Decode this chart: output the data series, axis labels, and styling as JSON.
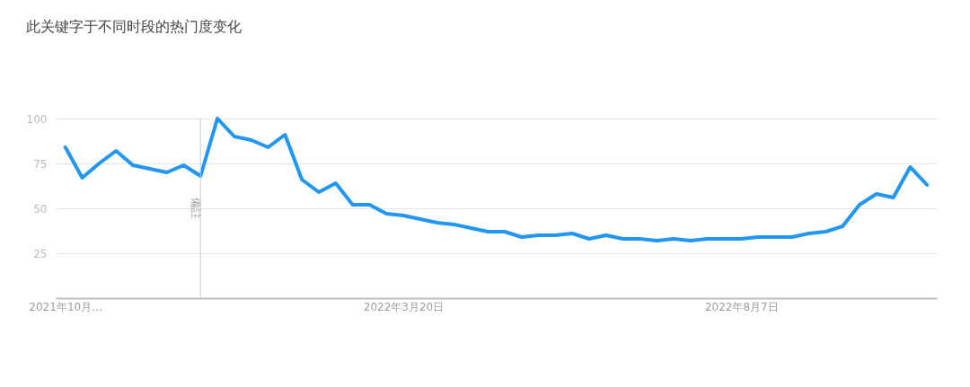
{
  "chart_data": {
    "type": "line",
    "title": "此关键字于不同时段的热门度变化",
    "x": [
      "2021-10-31",
      "2021-11-07",
      "2021-11-14",
      "2021-11-21",
      "2021-11-28",
      "2021-12-05",
      "2021-12-12",
      "2021-12-19",
      "2021-12-26",
      "2022-01-02",
      "2022-01-09",
      "2022-01-16",
      "2022-01-23",
      "2022-01-30",
      "2022-02-06",
      "2022-02-13",
      "2022-02-20",
      "2022-02-27",
      "2022-03-06",
      "2022-03-13",
      "2022-03-20",
      "2022-03-27",
      "2022-04-03",
      "2022-04-10",
      "2022-04-17",
      "2022-04-24",
      "2022-05-01",
      "2022-05-08",
      "2022-05-15",
      "2022-05-22",
      "2022-05-29",
      "2022-06-05",
      "2022-06-12",
      "2022-06-19",
      "2022-06-26",
      "2022-07-03",
      "2022-07-10",
      "2022-07-17",
      "2022-07-24",
      "2022-07-31",
      "2022-08-07",
      "2022-08-14",
      "2022-08-21",
      "2022-08-28",
      "2022-09-04",
      "2022-09-11",
      "2022-09-18",
      "2022-09-25",
      "2022-10-02",
      "2022-10-09",
      "2022-10-16",
      "2022-10-23"
    ],
    "series": [
      {
        "color": "#2196f3",
        "values": [
          84,
          67,
          75,
          82,
          74,
          72,
          70,
          74,
          68,
          100,
          90,
          88,
          84,
          91,
          66,
          59,
          64,
          52,
          52,
          47,
          46,
          44,
          42,
          41,
          39,
          37,
          37,
          34,
          35,
          35,
          36,
          33,
          35,
          33,
          33,
          32,
          33,
          32,
          33,
          33,
          33,
          34,
          34,
          34,
          36,
          37,
          40,
          52,
          58,
          56,
          73,
          63
        ]
      }
    ],
    "xlim": [
      "2021-10-27",
      "2022-10-27"
    ],
    "xticks": [
      {
        "value": "2021-10-31",
        "label": "2021年10月…"
      },
      {
        "value": "2022-03-20",
        "label": "2022年3月20日"
      },
      {
        "value": "2022-08-07",
        "label": "2022年8月7日"
      }
    ],
    "ylim": [
      0,
      100
    ],
    "yticks": [
      25,
      50,
      75,
      100
    ],
    "grid": "y",
    "marker": "none",
    "line_style": "solid",
    "ref_lines": [
      {
        "axis": "x",
        "value": "2021-12-26",
        "label": "備註",
        "color": "#cccccc"
      }
    ]
  }
}
